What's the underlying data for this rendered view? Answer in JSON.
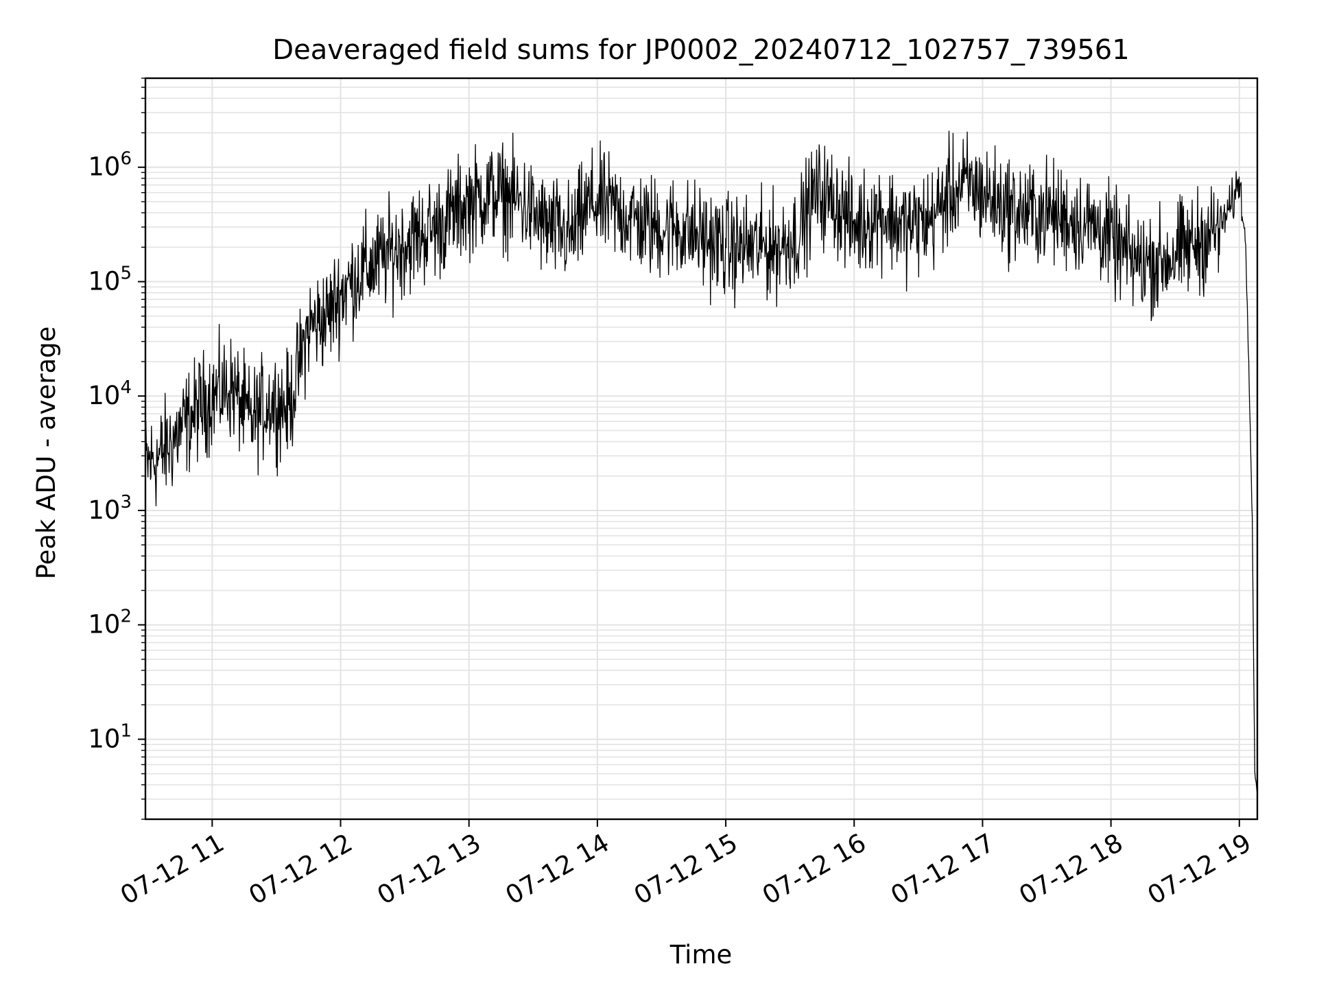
{
  "chart_data": {
    "type": "line",
    "title": "Deaveraged field sums for JP0002_20240712_102757_739561",
    "xlabel": "Time",
    "ylabel": "Peak ADU - average",
    "yscale": "log",
    "grid": true,
    "line_color": "#000000",
    "grid_color": "#e3e3e3",
    "x_ticks": [
      "07-12 11",
      "07-12 12",
      "07-12 13",
      "07-12 14",
      "07-12 15",
      "07-12 16",
      "07-12 17",
      "07-12 18",
      "07-12 19"
    ],
    "x_range_hours": [
      10.48,
      19.14
    ],
    "y_ticks": [
      {
        "base": "10",
        "exp": "1"
      },
      {
        "base": "10",
        "exp": "2"
      },
      {
        "base": "10",
        "exp": "3"
      },
      {
        "base": "10",
        "exp": "4"
      },
      {
        "base": "10",
        "exp": "5"
      },
      {
        "base": "10",
        "exp": "6"
      }
    ],
    "ylim": [
      2,
      6000000
    ],
    "series": [
      {
        "hour_of_day": [
          10.48,
          10.6,
          10.75,
          10.9,
          11.0,
          11.15,
          11.3,
          11.45,
          11.6,
          11.75,
          11.9,
          12.0,
          12.15,
          12.3,
          12.45,
          12.6,
          12.75,
          12.9,
          13.0,
          13.2,
          13.4,
          13.6,
          13.8,
          13.95,
          14.2,
          14.4,
          14.6,
          14.8,
          15.0,
          15.2,
          15.4,
          15.55,
          15.7,
          15.85,
          16.0,
          16.2,
          16.4,
          16.6,
          16.75,
          16.9,
          17.1,
          17.3,
          17.5,
          17.7,
          17.9,
          18.05,
          18.2,
          18.4,
          18.6,
          18.75,
          18.85,
          18.95,
          19.0,
          19.05,
          19.08,
          19.1,
          19.12,
          19.14
        ],
        "values": [
          2500,
          3000,
          5000,
          8000,
          10000,
          12000,
          6000,
          9000,
          8000,
          40000,
          50000,
          80000,
          120000,
          150000,
          200000,
          250000,
          300000,
          400000,
          500000,
          600000,
          500000,
          300000,
          250000,
          500000,
          400000,
          300000,
          300000,
          250000,
          200000,
          200000,
          200000,
          250000,
          600000,
          500000,
          300000,
          400000,
          300000,
          350000,
          600000,
          700000,
          500000,
          400000,
          400000,
          350000,
          300000,
          200000,
          150000,
          150000,
          200000,
          250000,
          300000,
          500000,
          800000,
          200000,
          10000,
          1000,
          5,
          4
        ]
      }
    ]
  }
}
